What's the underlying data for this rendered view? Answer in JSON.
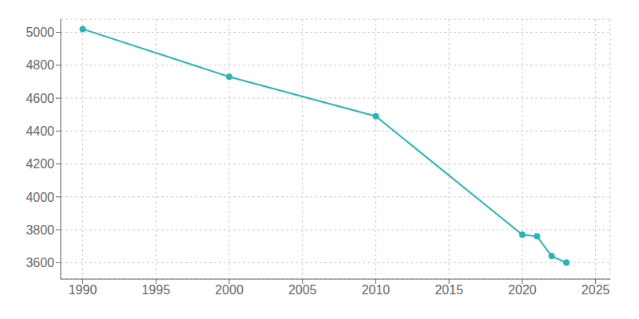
{
  "chart_data": {
    "type": "line",
    "x": [
      1990,
      2000,
      2010,
      2020,
      2021,
      2022,
      2023
    ],
    "values": [
      5020,
      4730,
      4490,
      3770,
      3760,
      3640,
      3600
    ],
    "color": "#2ab5b5",
    "marker": "circle",
    "xlim": [
      1988.5,
      2026
    ],
    "ylim": [
      3500,
      5080
    ],
    "xticks": [
      1990,
      1995,
      2000,
      2005,
      2010,
      2015,
      2020,
      2025
    ],
    "yticks": [
      3600,
      3800,
      4000,
      4200,
      4400,
      4600,
      4800,
      5000
    ],
    "grid": true
  }
}
